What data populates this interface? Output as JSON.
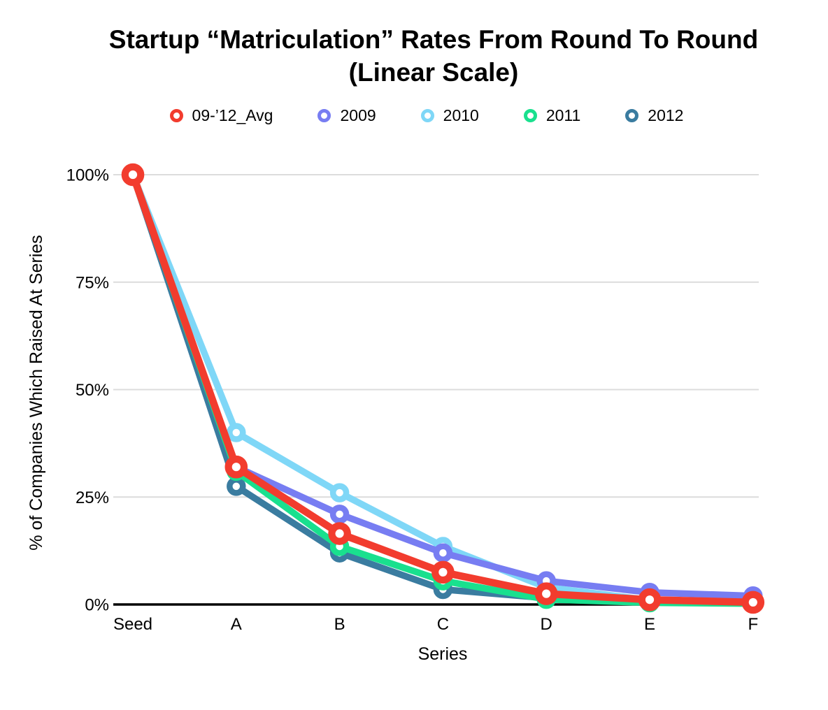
{
  "title": {
    "line1": "Startup “Matriculation” Rates From Round To Round",
    "line2": "(Linear Scale)"
  },
  "chart_data": {
    "type": "line",
    "title": "Startup “Matriculation” Rates From Round To Round (Linear Scale)",
    "xlabel": "Series",
    "ylabel": "% of Companies Which Raised At Series",
    "categories": [
      "Seed",
      "A",
      "B",
      "C",
      "D",
      "E",
      "F"
    ],
    "series": [
      {
        "name": "09-’12_Avg",
        "color": "#F23C2E",
        "values": [
          100,
          32,
          16.5,
          7.5,
          2.5,
          1.1,
          0.5
        ]
      },
      {
        "name": "2009",
        "color": "#777DF2",
        "values": [
          100,
          32,
          21,
          12,
          5.5,
          2.8,
          2.0
        ]
      },
      {
        "name": "2010",
        "color": "#7FD7F7",
        "values": [
          100,
          40,
          26,
          13.5,
          4,
          1.0,
          0.7
        ]
      },
      {
        "name": "2011",
        "color": "#19E08E",
        "values": [
          100,
          31,
          13.5,
          5.5,
          1.2,
          0.4,
          0.2
        ]
      },
      {
        "name": "2012",
        "color": "#3A7CA0",
        "values": [
          100,
          27.5,
          12,
          3.5,
          1.5,
          0.5,
          0.3
        ]
      }
    ],
    "yticks": [
      "0%",
      "25%",
      "50%",
      "75%",
      "100%"
    ],
    "ytick_values": [
      0,
      25,
      50,
      75,
      100
    ],
    "ylim": [
      0,
      100
    ],
    "grid": true,
    "legend_position": "top",
    "draw_order": [
      2,
      1,
      4,
      3,
      0
    ]
  },
  "style": {
    "grid_color": "#DCDCDC",
    "axis_color": "#000000",
    "background": "#FFFFFF",
    "marker_fill": "#FFFFFF"
  }
}
